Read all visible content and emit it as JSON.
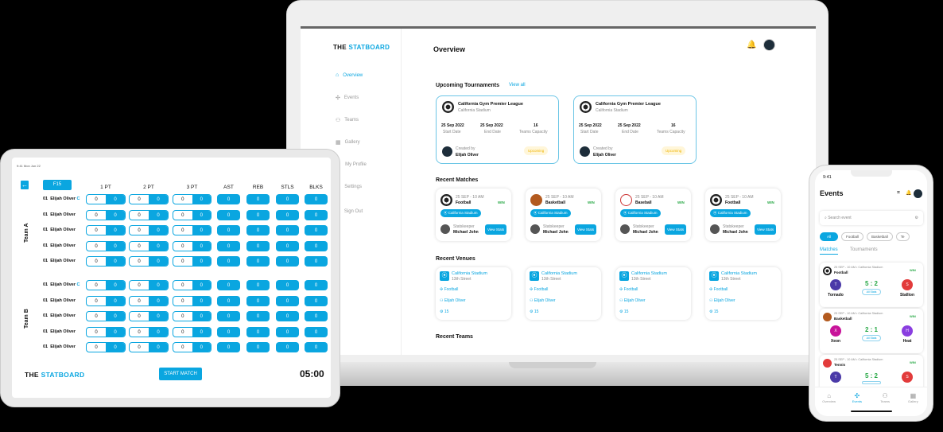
{
  "brand": {
    "prefix": "THE",
    "mark": "S",
    "suffix": "TATBOARD",
    "accent": "#0aa6e0"
  },
  "laptop": {
    "sidebar": [
      {
        "label": "Overview",
        "icon": "home-icon",
        "active": true
      },
      {
        "label": "Events",
        "icon": "events-icon"
      },
      {
        "label": "Teams",
        "icon": "teams-icon"
      },
      {
        "label": "Gallery",
        "icon": "gallery-icon"
      },
      {
        "label": "My Profile",
        "icon": "profile-icon"
      },
      {
        "label": "Settings",
        "icon": "settings-icon"
      },
      {
        "label": "Sign Out",
        "icon": "sign-out-icon"
      }
    ],
    "title": "Overview",
    "upcoming": {
      "title": "Upcoming Tournaments",
      "view_all": "View all",
      "cards": [
        {
          "name": "California Gym Premier League",
          "venue": "California Stadium",
          "start": "25 Sep 2022",
          "start_label": "Start Date",
          "end": "25 Sep 2022",
          "end_label": "End Date",
          "capacity": "16",
          "capacity_label": "Teams Capacity",
          "created_label": "Created by",
          "creator": "Elijah Oliver",
          "status": "Upcoming"
        },
        {
          "name": "California Gym Premier League",
          "venue": "California Stadium",
          "start": "25 Sep 2022",
          "start_label": "Start Date",
          "end": "25 Sep 2022",
          "end_label": "End Date",
          "capacity": "16",
          "capacity_label": "Teams Capacity",
          "created_label": "Created by",
          "creator": "Elijah Oliver",
          "status": "Upcoming"
        }
      ]
    },
    "matches": {
      "title": "Recent Matches",
      "cards": [
        {
          "time": "25 SEP - 10 AM",
          "sport": "Football",
          "venue": "California Stadium",
          "result": "WIN",
          "role": "Statskeeper",
          "person": "Michael John",
          "button": "View Stats"
        },
        {
          "time": "25 SEP - 10 AM",
          "sport": "Basketball",
          "venue": "California Stadium",
          "result": "WIN",
          "role": "Statskeeper",
          "person": "Michael John",
          "button": "View Stats"
        },
        {
          "time": "25 SEP - 10 AM",
          "sport": "Baseball",
          "venue": "California Stadium",
          "result": "WIN",
          "role": "Statskeeper",
          "person": "Michael John",
          "button": "View Stats"
        },
        {
          "time": "25 SEP - 10 AM",
          "sport": "Football",
          "venue": "California Stadium",
          "result": "WIN",
          "role": "Statskeeper",
          "person": "Michael John",
          "button": "View Stats"
        }
      ]
    },
    "venues": {
      "title": "Recent Venues",
      "cards": [
        {
          "name": "California Stadium",
          "street": "13th Street",
          "sport": "Football",
          "owner": "Elijah Oliver",
          "count": "15"
        },
        {
          "name": "California Stadium",
          "street": "13th Street",
          "sport": "Football",
          "owner": "Elijah Oliver",
          "count": "15"
        },
        {
          "name": "California Stadium",
          "street": "13th Street",
          "sport": "Football",
          "owner": "Elijah Oliver",
          "count": "15"
        },
        {
          "name": "California Stadium",
          "street": "13th Street",
          "sport": "Football",
          "owner": "Elijah Oliver",
          "count": "15"
        }
      ]
    },
    "teams_title": "Recent Teams"
  },
  "tablet": {
    "status": "9:41 Mon Jun 22",
    "period": "F15",
    "columns": [
      "1 PT",
      "2 PT",
      "3 PT",
      "AST",
      "REB",
      "STLS",
      "BLKS"
    ],
    "teams": [
      {
        "name": "Team A",
        "players": [
          {
            "num": "01",
            "name": "Elijah Oliver",
            "captain": "C"
          },
          {
            "num": "01",
            "name": "Elijah Oliver"
          },
          {
            "num": "01",
            "name": "Elijah Oliver"
          },
          {
            "num": "01",
            "name": "Elijah Oliver"
          },
          {
            "num": "01",
            "name": "Elijah Oliver"
          }
        ]
      },
      {
        "name": "Team B",
        "players": [
          {
            "num": "01",
            "name": "Elijah Oliver",
            "captain": "C"
          },
          {
            "num": "01",
            "name": "Elijah Oliver"
          },
          {
            "num": "01",
            "name": "Elijah Oliver"
          },
          {
            "num": "01",
            "name": "Elijah Oliver"
          },
          {
            "num": "01",
            "name": "Elijah Oliver"
          }
        ]
      }
    ],
    "stat_value": "0",
    "start_button": "START MATCH",
    "timer": "05:00"
  },
  "phone": {
    "time": "9:41",
    "title": "Events",
    "search_placeholder": "Search event",
    "chips": [
      "All",
      "Football",
      "Basketball",
      "Te"
    ],
    "tabs": [
      "Matches",
      "Tournaments"
    ],
    "events": [
      {
        "meta": "25 SEP - 10 AM • California Stadium",
        "sport": "Football",
        "result": "WIN",
        "home": "Tornado",
        "home_initial": "T",
        "home_color": "#4b3aa8",
        "away": "Stallion",
        "away_initial": "S",
        "away_color": "#e23b3b",
        "score": "5 : 2",
        "badge": "All Stats"
      },
      {
        "meta": "25 SEP - 10 AM • California Stadium",
        "sport": "Basketball",
        "result": "WIN",
        "home": "Xeon",
        "home_initial": "X",
        "home_color": "#c8139a",
        "away": "Heat",
        "away_initial": "H",
        "away_color": "#8a3ee0",
        "score": "2 : 1",
        "badge": "All Stats"
      },
      {
        "meta": "25 SEP - 10 AM • California Stadium",
        "sport": "Tennis",
        "result": "WIN",
        "home": "",
        "home_initial": "T",
        "home_color": "#4b3aa8",
        "away": "",
        "away_initial": "S",
        "away_color": "#e23b3b",
        "score": "5 : 2",
        "badge": ""
      }
    ],
    "bottom_nav": [
      "Overview",
      "Events",
      "Teams",
      "Gallery"
    ]
  }
}
